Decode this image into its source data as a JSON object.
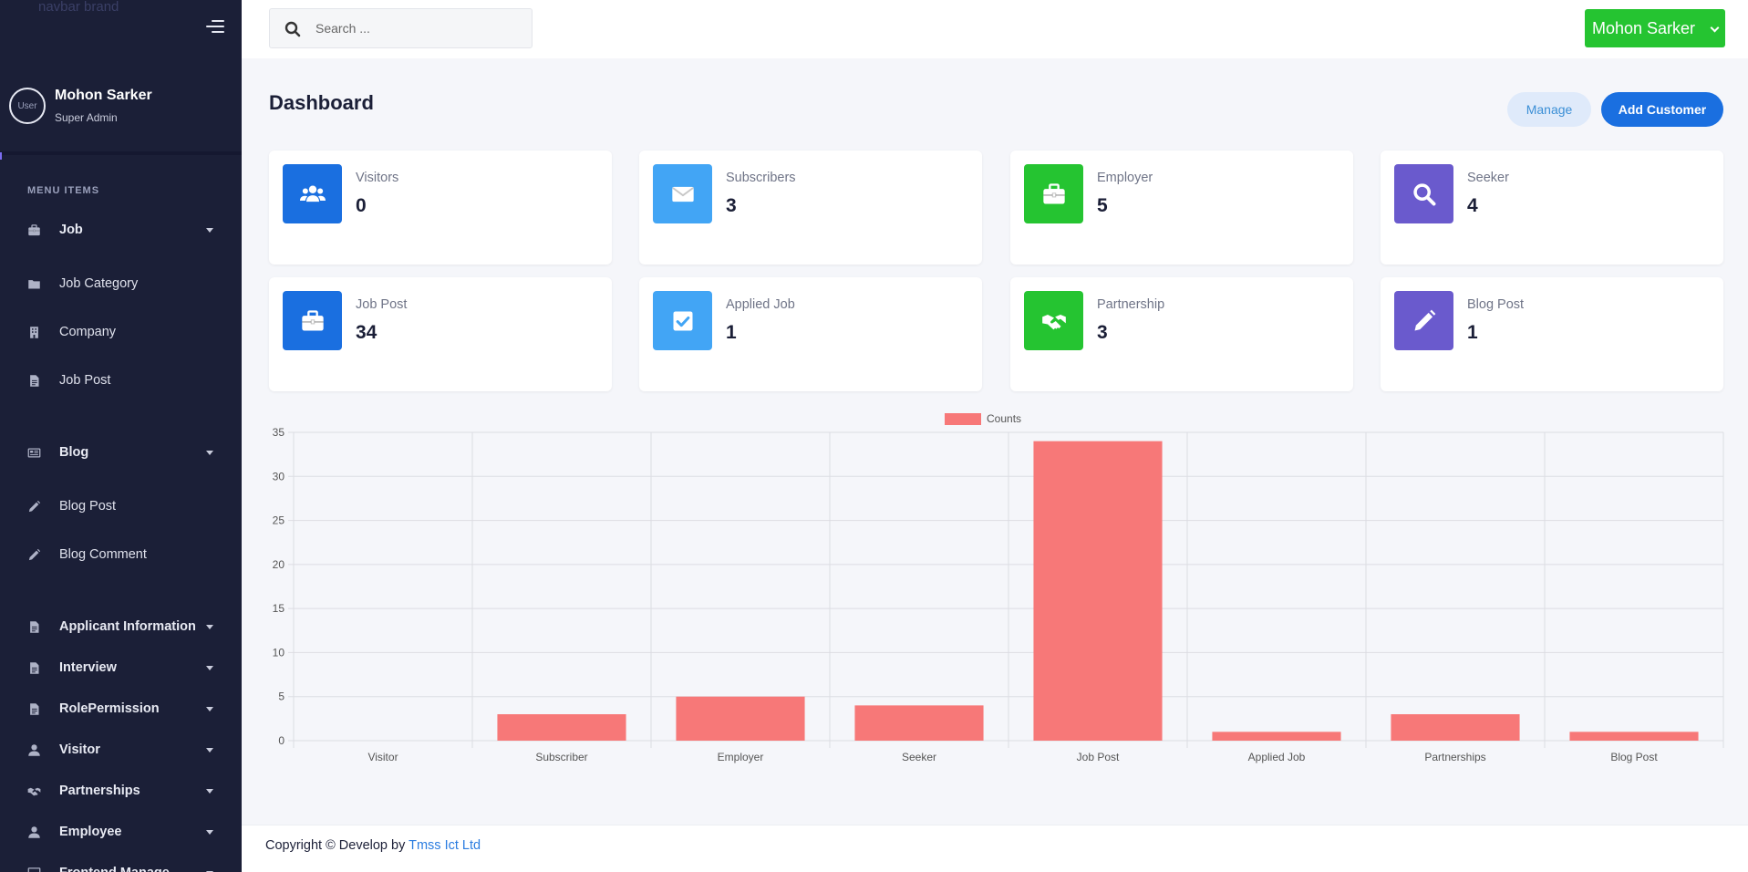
{
  "brand": {
    "text": "navbar brand"
  },
  "user": {
    "name": "Mohon Sarker",
    "role": "Super Admin",
    "avatar_alt": "User"
  },
  "sidebar": {
    "heading": "MENU ITEMS",
    "items": [
      {
        "label": "Job",
        "icon": "briefcase-icon",
        "caret": true,
        "bold": true
      },
      {
        "label": "Job Category",
        "icon": "folder-icon",
        "caret": false,
        "bold": false
      },
      {
        "label": "Company",
        "icon": "building-icon",
        "caret": false,
        "bold": false
      },
      {
        "label": "Job Post",
        "icon": "file-icon",
        "caret": false,
        "bold": false
      },
      {
        "label": "Blog",
        "icon": "newspaper-icon",
        "caret": true,
        "bold": true
      },
      {
        "label": "Blog Post",
        "icon": "pencil-icon",
        "caret": false,
        "bold": false
      },
      {
        "label": "Blog Comment",
        "icon": "pencil-icon",
        "caret": false,
        "bold": false
      },
      {
        "label": "Applicant Information",
        "icon": "file-icon",
        "caret": true,
        "bold": true
      },
      {
        "label": "Interview",
        "icon": "file-icon",
        "caret": true,
        "bold": true
      },
      {
        "label": "RolePermission",
        "icon": "file-icon",
        "caret": true,
        "bold": true
      },
      {
        "label": "Visitor",
        "icon": "user-icon",
        "caret": true,
        "bold": true
      },
      {
        "label": "Partnerships",
        "icon": "handshake-icon",
        "caret": true,
        "bold": true
      },
      {
        "label": "Employee",
        "icon": "user-icon",
        "caret": true,
        "bold": true
      },
      {
        "label": "Frontend Manage",
        "icon": "monitor-icon",
        "caret": true,
        "bold": true
      }
    ]
  },
  "search": {
    "placeholder": "Search ..."
  },
  "topbar": {
    "user_button": "Mohon Sarker"
  },
  "page": {
    "title": "Dashboard",
    "manage_label": "Manage",
    "add_customer_label": "Add Customer"
  },
  "stats": [
    {
      "label": "Visitors",
      "value": "0",
      "color": "#1a6fe0",
      "icon": "users-icon"
    },
    {
      "label": "Subscribers",
      "value": "3",
      "color": "#42a5f5",
      "icon": "envelope-icon"
    },
    {
      "label": "Employer",
      "value": "5",
      "color": "#25c431",
      "icon": "briefcase-icon"
    },
    {
      "label": "Seeker",
      "value": "4",
      "color": "#6a5acd",
      "icon": "search-icon"
    },
    {
      "label": "Job Post",
      "value": "34",
      "color": "#1a6fe0",
      "icon": "briefcase-icon"
    },
    {
      "label": "Applied Job",
      "value": "1",
      "color": "#42a5f5",
      "icon": "checkbox-icon"
    },
    {
      "label": "Partnership",
      "value": "3",
      "color": "#25c431",
      "icon": "handshake-icon"
    },
    {
      "label": "Blog Post",
      "value": "1",
      "color": "#6a5acd",
      "icon": "pencil-icon"
    }
  ],
  "chart_data": {
    "type": "bar",
    "categories": [
      "Visitor",
      "Subscriber",
      "Employer",
      "Seeker",
      "Job Post",
      "Applied Job",
      "Partnerships",
      "Blog Post"
    ],
    "series": [
      {
        "name": "Counts",
        "values": [
          0,
          3,
          5,
          4,
          34,
          1,
          3,
          1
        ],
        "color": "#f77878"
      }
    ],
    "ylim": [
      0,
      35
    ],
    "yticks": [
      0,
      5,
      10,
      15,
      20,
      25,
      30,
      35
    ],
    "grid": true,
    "legend": "top-center"
  },
  "footer": {
    "text": "Copyright © Develop by ",
    "link": "Tmss Ict Ltd"
  },
  "colors": {
    "sidebar_bg": "#1b1f37",
    "accent_green": "#25c431",
    "accent_blue": "#1a6fe0",
    "bar": "#f77878"
  }
}
